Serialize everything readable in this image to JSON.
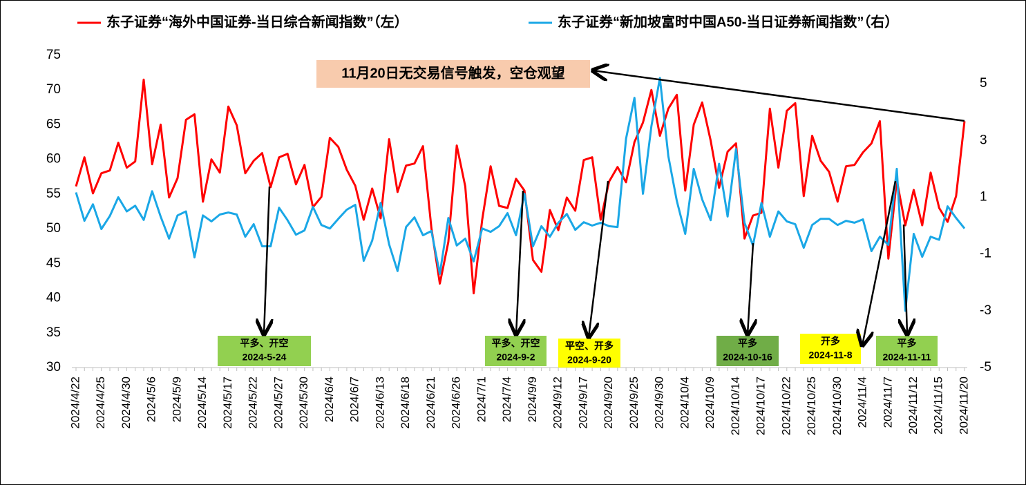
{
  "chart_data": {
    "type": "line",
    "series": [
      {
        "name": "东子证券“海外中国证券-当日综合新闻指数”（左）",
        "color": "#ff0000",
        "axis": "y",
        "values": [
          56.1,
          60.3,
          55.1,
          58,
          58.4,
          62.4,
          58.8,
          59.7,
          71.5,
          59.3,
          65,
          54.5,
          57.3,
          65.7,
          66.5,
          53.9,
          60,
          58.1,
          67.6,
          64.9,
          58,
          59.8,
          60.9,
          56,
          60.3,
          60.8,
          56.4,
          59.2,
          53.1,
          54.6,
          63.1,
          61.8,
          58.5,
          56.2,
          51.3,
          55.8,
          51.5,
          62.9,
          55.3,
          59.1,
          59.4,
          61.9,
          50.1,
          42.1,
          48.1,
          62,
          56.1,
          40.7,
          51.3,
          59,
          53.3,
          53,
          57.2,
          55.5,
          45.5,
          43.8,
          52.7,
          49.8,
          54.5,
          52.6,
          59.9,
          60.3,
          51.3,
          56.8,
          58.9,
          56.7,
          62.5,
          65.3,
          70,
          63.4,
          67.3,
          69.3,
          55.5,
          65,
          68.2,
          62.7,
          55.9,
          61.1,
          62.3,
          48.6,
          51.9,
          52.3,
          67.3,
          58.8,
          67,
          68.1,
          54.7,
          63.4,
          59.8,
          58.2,
          53.9,
          59,
          59.2,
          61,
          62.3,
          65.5,
          45.7,
          57,
          50.5,
          55.6,
          50.5,
          58.1,
          53,
          51,
          54.7,
          65.5
        ]
      },
      {
        "name": "东子证券“新加坡富时中国A50-当日证券新闻指数”（右）",
        "color": "#1aa7e6",
        "axis": "y2",
        "values": [
          1.17,
          0.17,
          0.75,
          -0.12,
          0.34,
          1,
          0.5,
          0.7,
          0.2,
          1.21,
          0.32,
          -0.46,
          0.36,
          0.5,
          -1.12,
          0.36,
          0.15,
          0.39,
          0.46,
          0.39,
          -0.39,
          0.05,
          -0.73,
          -0.73,
          0.63,
          0.19,
          -0.32,
          -0.17,
          0.66,
          0.02,
          -0.1,
          0.24,
          0.56,
          0.73,
          -1.24,
          -0.53,
          0.8,
          -0.66,
          -1.6,
          -0.05,
          0.29,
          -0.34,
          -0.19,
          -1.7,
          0.27,
          -0.7,
          -0.46,
          -1.26,
          -0.1,
          -0.22,
          -0.02,
          0.44,
          -0.34,
          1.12,
          -0.73,
          -0.02,
          -0.39,
          0.1,
          0.41,
          -0.15,
          0.12,
          0,
          0.1,
          -0.02,
          -0.05,
          3.06,
          4.5,
          1.12,
          3.5,
          5.2,
          2.45,
          0.87,
          -0.29,
          2,
          0.92,
          0.19,
          2.18,
          0.32,
          2.7,
          0.1,
          -0.7,
          0.8,
          -0.39,
          0.5,
          0.15,
          0.05,
          -0.78,
          0.02,
          0.24,
          0.24,
          0.02,
          0.17,
          0.1,
          0.22,
          -0.9,
          -0.39,
          -0.68,
          2,
          -3,
          -0.29,
          -1.1,
          -0.39,
          -0.5,
          0.68,
          0.27,
          -0.1
        ]
      }
    ],
    "categories": [
      "2024/4/22",
      null,
      null,
      "2024/4/25",
      null,
      null,
      "2024/4/30",
      null,
      null,
      "2024/5/6",
      null,
      null,
      "2024/5/9",
      null,
      null,
      "2024/5/14",
      null,
      null,
      "2024/5/17",
      null,
      null,
      "2024/5/22",
      null,
      null,
      "2024/5/27",
      null,
      null,
      "2024/5/30",
      null,
      null,
      "2024/6/4",
      null,
      null,
      "2024/6/7",
      null,
      null,
      "2024/6/13",
      null,
      null,
      "2024/6/18",
      null,
      null,
      "2024/6/21",
      null,
      null,
      "2024/6/26",
      null,
      null,
      "2024/7/1",
      null,
      null,
      "2024/7/4",
      null,
      null,
      "2024/9/9",
      null,
      null,
      "2024/9/12",
      null,
      null,
      "2024/9/17",
      null,
      null,
      "2024/9/20",
      null,
      null,
      "2024/9/25",
      null,
      null,
      "2024/9/30",
      null,
      null,
      "2024/10/4",
      null,
      null,
      "2024/10/9",
      null,
      null,
      "2024/10/14",
      null,
      null,
      "2024/10/17",
      null,
      null,
      "2024/10/22",
      null,
      null,
      "2024/10/25",
      null,
      null,
      "2024/10/30",
      null,
      null,
      "2024/11/4",
      null,
      null,
      "2024/11/7",
      null,
      null,
      "2024/11/12",
      null,
      null,
      "2024/11/15",
      null,
      null,
      "2024/11/20"
    ],
    "ylim": [
      30,
      75
    ],
    "yticks": [
      30,
      35,
      40,
      45,
      50,
      55,
      60,
      65,
      70,
      75
    ],
    "y2lim": [
      -5,
      6
    ],
    "y2ticks": [
      -5,
      -3,
      -1,
      1,
      3,
      5
    ],
    "callout": {
      "text": "11月20日无交易信号触发，空仓观望",
      "color": "#f8cbad"
    },
    "annotations": [
      {
        "lines": [
          "平多、开空",
          "2024-5-24"
        ],
        "color": "#92d050"
      },
      {
        "lines": [
          "平多、开空",
          "2024-9-2"
        ],
        "color": "#92d050"
      },
      {
        "lines": [
          "平空、开多",
          "2024-9-20"
        ],
        "color": "#ffff00"
      },
      {
        "lines": [
          "平多",
          "2024-10-16"
        ],
        "color": "#70ad47"
      },
      {
        "lines": [
          "开多",
          "2024-11-8"
        ],
        "color": "#ffff00"
      },
      {
        "lines": [
          "平多",
          "2024-11-11"
        ],
        "color": "#92d050"
      }
    ]
  }
}
